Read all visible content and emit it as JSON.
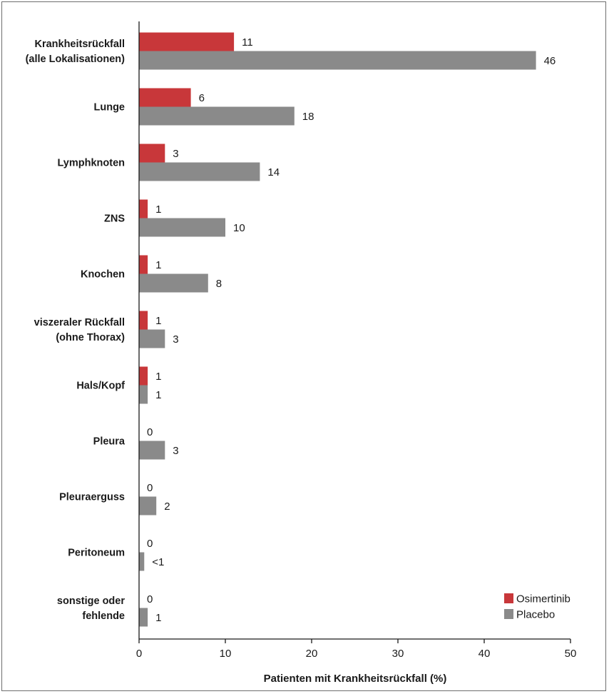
{
  "chart_data": {
    "type": "bar",
    "orientation": "horizontal",
    "title": "",
    "xlabel": "Patienten mit Krankheitsrückfall (%)",
    "ylabel": "",
    "xlim": [
      0,
      50
    ],
    "x_ticks": [
      0,
      10,
      20,
      30,
      40,
      50
    ],
    "grid": false,
    "legend_position": "bottom-right",
    "categories": [
      [
        "Krankheitsrückfall",
        "(alle Lokalisationen)"
      ],
      [
        "Lunge"
      ],
      [
        "Lymphknoten"
      ],
      [
        "ZNS"
      ],
      [
        "Knochen"
      ],
      [
        "viszeraler Rückfall",
        "(ohne Thorax)"
      ],
      [
        "Hals/Kopf"
      ],
      [
        "Pleura"
      ],
      [
        "Pleuraerguss"
      ],
      [
        "Peritoneum"
      ],
      [
        "sonstige oder",
        "fehlende"
      ]
    ],
    "series": [
      {
        "name": "Osimertinib",
        "color": "#c8373a",
        "values": [
          11,
          6,
          3,
          1,
          1,
          1,
          1,
          0,
          0,
          0,
          0
        ],
        "labels": [
          "11",
          "6",
          "3",
          "1",
          "1",
          "1",
          "1",
          "0",
          "0",
          "0",
          "0"
        ]
      },
      {
        "name": "Placebo",
        "color": "#8a8a8a",
        "values": [
          46,
          18,
          14,
          10,
          8,
          3,
          1,
          3,
          2,
          0.6,
          1
        ],
        "labels": [
          "46",
          "18",
          "14",
          "10",
          "8",
          "3",
          "1",
          "3",
          "2",
          "<1",
          "1"
        ]
      }
    ]
  }
}
